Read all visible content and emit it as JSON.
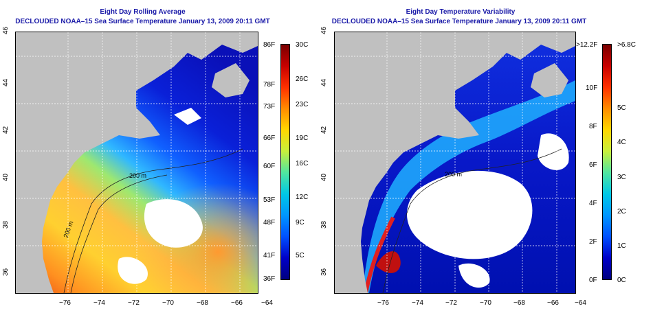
{
  "left_panel": {
    "title_line1": "Eight Day Rolling Average",
    "title_line2": "DECLOUDED NOAA–15 Sea Surface Temperature January 13, 2009 20:11 GMT",
    "x_ticks": [
      "−76",
      "−74",
      "−72",
      "−70",
      "−68",
      "−66",
      "−64"
    ],
    "y_ticks": [
      "36",
      "38",
      "40",
      "42",
      "44",
      "46"
    ],
    "contour_labels": [
      "200 m",
      "200 m"
    ],
    "colorbar_f": [
      "86F",
      "78F",
      "73F",
      "66F",
      "60F",
      "53F",
      "48F",
      "41F",
      "36F"
    ],
    "colorbar_c": [
      "30C",
      "26C",
      "23C",
      "19C",
      "16C",
      "12C",
      "9C",
      "5C"
    ]
  },
  "right_panel": {
    "title_line1": "Eight Day Temperature Variability",
    "title_line2": "DECLOUDED NOAA–15 Sea Surface Temperature January 13, 2009 20:11 GMT",
    "x_ticks": [
      "−76",
      "−74",
      "−72",
      "−70",
      "−68",
      "−66",
      "−64"
    ],
    "y_ticks": [
      "36",
      "38",
      "40",
      "42",
      "44",
      "46"
    ],
    "contour_labels": [
      "200 m"
    ],
    "colorbar_f": [
      ">12.2F",
      "10F",
      "8F",
      "6F",
      "4F",
      "2F",
      "0F"
    ],
    "colorbar_c": [
      ">6.8C",
      "5C",
      "4C",
      "3C",
      "2C",
      "1C",
      "0C"
    ]
  },
  "colors": {
    "title": "#1a1aa8",
    "land": "#c0c0c0",
    "cloud_mask": "#ffffff",
    "grid": "#ffffff"
  },
  "colorbar_palette": [
    "#7a0000",
    "#c80000",
    "#ff3000",
    "#ff8c00",
    "#ffd700",
    "#c8f03c",
    "#50e6a0",
    "#00c8e6",
    "#0096ff",
    "#0050ff",
    "#0000c8",
    "#000080"
  ],
  "axes": {
    "lon_range": [
      -77,
      -63
    ],
    "lat_range": [
      35,
      46
    ]
  }
}
